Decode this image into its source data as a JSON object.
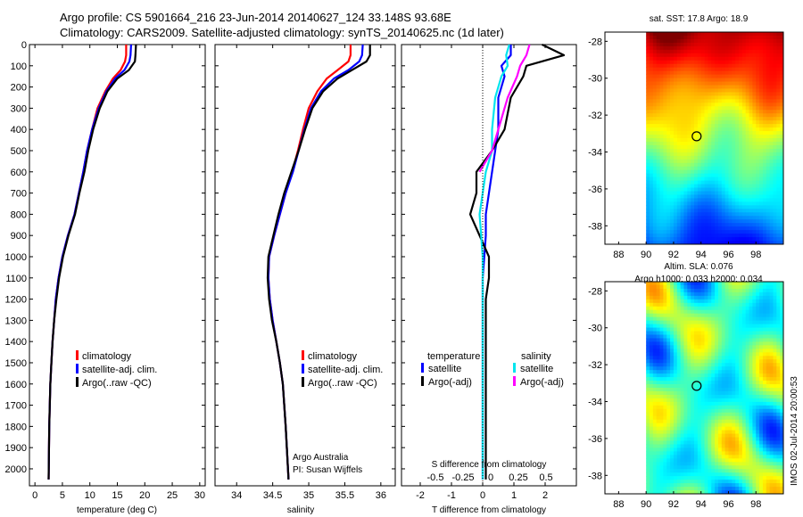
{
  "header": {
    "line1": "Argo profile: CS 5901664_216 23-Jun-2014 20140627_124 33.148S 93.68E",
    "line2": "Climatology: CARS2009. Satellite-adjusted climatology: synTS_20140625.nc (1d later)"
  },
  "colors": {
    "climatology": "#ff0000",
    "satellite": "#0000ff",
    "argo": "#000000",
    "sal_satellite": "#00e5ee",
    "sal_argo": "#ff00ff"
  },
  "chart_data": [
    {
      "type": "line",
      "panel": "temperature",
      "xlabel": "temperature (deg C)",
      "ylabel": "",
      "xlim": [
        -1,
        31
      ],
      "ylim": [
        2080,
        0
      ],
      "xticks": [
        0,
        5,
        10,
        15,
        20,
        25,
        30
      ],
      "yticks": [
        0,
        100,
        200,
        300,
        400,
        500,
        600,
        700,
        800,
        900,
        1000,
        1100,
        1200,
        1300,
        1400,
        1500,
        1600,
        1700,
        1800,
        1900,
        2000
      ],
      "legend": [
        "climatology",
        "satellite-adj. clim.",
        "Argo(..raw -QC)"
      ],
      "series": [
        {
          "name": "climatology",
          "color": "#ff0000",
          "x": [
            16.6,
            16.6,
            16.4,
            15.6,
            14.2,
            12.8,
            11.4,
            10.4,
            9.5,
            8.8,
            8.0,
            7.2,
            6.0,
            5.0,
            4.3,
            3.8,
            3.5,
            3.2,
            3.0,
            2.8,
            2.6,
            2.5
          ],
          "y": [
            0,
            50,
            80,
            120,
            160,
            220,
            300,
            400,
            500,
            600,
            700,
            800,
            900,
            1000,
            1100,
            1200,
            1300,
            1400,
            1500,
            1600,
            1800,
            2050
          ]
        },
        {
          "name": "satellite-adj. clim.",
          "color": "#0000ff",
          "x": [
            17.5,
            17.4,
            17.2,
            16.3,
            14.6,
            13.0,
            11.6,
            10.4,
            9.5,
            8.8,
            8.0,
            7.2,
            6.0,
            5.0,
            4.3,
            3.8,
            3.5,
            3.2,
            3.0,
            2.8,
            2.6,
            2.5
          ],
          "y": [
            0,
            50,
            80,
            120,
            160,
            220,
            300,
            400,
            500,
            600,
            700,
            800,
            900,
            1000,
            1100,
            1200,
            1300,
            1400,
            1500,
            1600,
            1800,
            2050
          ]
        },
        {
          "name": "Argo(..raw -QC)",
          "color": "#000000",
          "x": [
            18.4,
            18.3,
            18.2,
            17.1,
            15.0,
            13.2,
            11.8,
            10.6,
            9.7,
            9.0,
            8.1,
            7.3,
            6.1,
            5.1,
            4.4,
            3.9,
            3.5,
            3.2,
            3.0,
            2.8,
            2.6,
            2.5
          ],
          "y": [
            0,
            50,
            80,
            120,
            160,
            220,
            300,
            400,
            500,
            600,
            700,
            800,
            900,
            1000,
            1100,
            1200,
            1300,
            1400,
            1500,
            1600,
            1800,
            2050
          ]
        }
      ]
    },
    {
      "type": "line",
      "panel": "salinity",
      "xlabel": "salinity",
      "xlim": [
        33.7,
        36.2
      ],
      "ylim": [
        2080,
        0
      ],
      "xticks": [
        34,
        34.5,
        35,
        35.5,
        36
      ],
      "legend": [
        "climatology",
        "satellite-adj. clim.",
        "Argo(..raw -QC)"
      ],
      "annotation": [
        "Argo Australia",
        "PI: Susan Wijffels"
      ],
      "series": [
        {
          "name": "climatology",
          "color": "#ff0000",
          "x": [
            35.58,
            35.58,
            35.55,
            35.4,
            35.25,
            35.12,
            35.0,
            34.92,
            34.85,
            34.77,
            34.68,
            34.6,
            34.52,
            34.45,
            34.44,
            34.46,
            34.5,
            34.55,
            34.6,
            34.64,
            34.68,
            34.72
          ],
          "y": [
            0,
            50,
            80,
            120,
            160,
            220,
            300,
            400,
            500,
            600,
            700,
            800,
            900,
            1000,
            1100,
            1200,
            1300,
            1400,
            1500,
            1600,
            1800,
            2050
          ]
        },
        {
          "name": "satellite-adj. clim.",
          "color": "#0000ff",
          "x": [
            35.75,
            35.74,
            35.7,
            35.55,
            35.35,
            35.17,
            35.03,
            34.94,
            34.86,
            34.78,
            34.68,
            34.6,
            34.52,
            34.45,
            34.44,
            34.46,
            34.5,
            34.55,
            34.6,
            34.64,
            34.68,
            34.72
          ],
          "y": [
            0,
            50,
            80,
            120,
            160,
            220,
            300,
            400,
            500,
            600,
            700,
            800,
            900,
            1000,
            1100,
            1200,
            1300,
            1400,
            1500,
            1600,
            1800,
            2050
          ]
        },
        {
          "name": "Argo(..raw -QC)",
          "color": "#000000",
          "x": [
            35.85,
            35.85,
            35.8,
            35.6,
            35.4,
            35.2,
            35.05,
            34.95,
            34.86,
            34.76,
            34.66,
            34.58,
            34.51,
            34.44,
            34.43,
            34.45,
            34.49,
            34.55,
            34.6,
            34.64,
            34.68,
            34.72
          ],
          "y": [
            0,
            50,
            80,
            120,
            160,
            220,
            300,
            400,
            500,
            600,
            700,
            800,
            900,
            1000,
            1100,
            1200,
            1300,
            1400,
            1500,
            1600,
            1800,
            2050
          ]
        }
      ]
    },
    {
      "type": "line",
      "panel": "difference",
      "xlabel": "T difference from climatology",
      "xlabel_top": "S difference from climatology",
      "xlim": [
        -2.6,
        3.0
      ],
      "ylim": [
        2080,
        0
      ],
      "xticks": [
        -2,
        -1,
        0,
        1,
        2
      ],
      "sticks": [
        "-0.5",
        "-0.25",
        "0",
        "0.25",
        "0.5"
      ],
      "legend_temp_title": "temperature",
      "legend_sal_title": "salinity",
      "legend": [
        "satellite",
        "Argo(-adj)",
        "satellite",
        "Argo(-adj)"
      ],
      "series": [
        {
          "name": "temperature satellite",
          "color": "#0000ff",
          "x": [
            0.9,
            0.9,
            0.6,
            0.7,
            0.5,
            0.5,
            0.4,
            0.3,
            0.2,
            0.1,
            0.1,
            0.05,
            0.0,
            0.0,
            0.0,
            0.0,
            0.0,
            0.0,
            0.0,
            0.0,
            0.0,
            0.0
          ],
          "y": [
            0,
            50,
            100,
            150,
            250,
            400,
            500,
            600,
            700,
            800,
            900,
            1000,
            1100,
            1200,
            1300,
            1400,
            1500,
            1600,
            1700,
            1800,
            1900,
            2050
          ]
        },
        {
          "name": "temperature Argo(-adj)",
          "color": "#000000",
          "x": [
            1.9,
            2.6,
            1.4,
            1.3,
            0.9,
            0.7,
            0.3,
            -0.2,
            -0.2,
            -0.4,
            -0.1,
            0.2,
            0.2,
            0.1,
            0.1,
            0.1,
            0.1,
            0.1,
            0.1,
            0.1,
            0.1,
            0.1
          ],
          "y": [
            0,
            50,
            100,
            150,
            250,
            400,
            500,
            600,
            700,
            800,
            900,
            1000,
            1100,
            1200,
            1300,
            1400,
            1500,
            1600,
            1700,
            1800,
            1900,
            2050
          ]
        },
        {
          "name": "salinity satellite",
          "color": "#00e5ee",
          "x": [
            0.85,
            0.75,
            0.8,
            0.6,
            0.4,
            0.3,
            0.3,
            0.1,
            0.0,
            -0.1,
            -0.05,
            0.0,
            0.0,
            0.0,
            0.0,
            0.0,
            0.0,
            0.0,
            0.0,
            0.0,
            0.0,
            0.0
          ],
          "y": [
            0,
            50,
            100,
            150,
            250,
            400,
            500,
            600,
            700,
            800,
            900,
            1000,
            1100,
            1200,
            1300,
            1400,
            1500,
            1600,
            1700,
            1800,
            1900,
            2050
          ]
        },
        {
          "name": "salinity Argo(-adj)",
          "color": "#ff00ff",
          "x": [
            1.5,
            1.4,
            1.2,
            1.1,
            0.8,
            0.5,
            0.3,
            -0.1
          ],
          "y": [
            0,
            50,
            100,
            150,
            250,
            400,
            500,
            600
          ]
        }
      ]
    },
    {
      "type": "heatmap",
      "panel": "sst",
      "title": "sat. SST: 17.8 Argo: 18.9",
      "xticks": [
        88,
        90,
        92,
        94,
        96,
        98
      ],
      "yticks": [
        -28,
        -30,
        -32,
        -34,
        -36,
        -38
      ],
      "xlim": [
        87,
        100
      ],
      "ylim": [
        -39,
        -27.5
      ],
      "marker": {
        "lon": 93.68,
        "lat": -33.148
      }
    },
    {
      "type": "heatmap",
      "panel": "sla",
      "title": "Altim. SLA: 0.076",
      "subtitle": "Argo h1000: 0.033 h2000: 0.034",
      "xticks": [
        88,
        90,
        92,
        94,
        96,
        98
      ],
      "yticks": [
        -28,
        -30,
        -32,
        -34,
        -36,
        -38
      ],
      "xlim": [
        87,
        100
      ],
      "ylim": [
        -39,
        -27.5
      ],
      "marker": {
        "lon": 93.68,
        "lat": -33.148
      }
    }
  ],
  "footer": {
    "credit": "IMOS 02-Jul-2014 20:00:53"
  }
}
